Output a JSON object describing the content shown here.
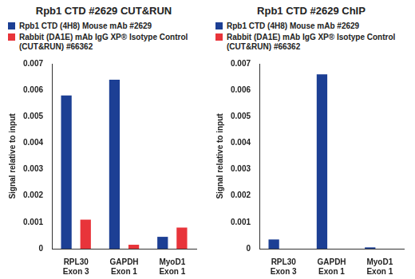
{
  "chart_data": [
    {
      "type": "bar",
      "title": "Rpb1 CTD #2629 CUT&RUN",
      "y_label": "Signal relative to input",
      "categories": [
        [
          "RPL30",
          "Exon 3"
        ],
        [
          "GAPDH",
          "Exon 1"
        ],
        [
          "MyoD1",
          "Exon 1"
        ]
      ],
      "series": [
        {
          "name": "Rpb1 CTD (4H8) Mouse mAb #2629",
          "color": "#1c3f94",
          "values": [
            0.0058,
            0.0064,
            0.00045
          ]
        },
        {
          "name": "Rabbit (DA1E) mAb IgG XP® Isotype Control (CUT&RUN) #66362",
          "color": "#e8343a",
          "values": [
            0.0011,
            0.00015,
            0.0008
          ]
        }
      ],
      "ylim": [
        0,
        0.007
      ],
      "yticks": [
        0,
        0.001,
        0.002,
        0.003,
        0.004,
        0.005,
        0.006,
        0.007
      ],
      "grid": false
    },
    {
      "type": "bar",
      "title": "Rpb1 CTD #2629 ChIP",
      "y_label": "Signal relative to input",
      "categories": [
        [
          "RPL30",
          "Exon 3"
        ],
        [
          "GAPDH",
          "Exon 1"
        ],
        [
          "MyoD1",
          "Exon 1"
        ]
      ],
      "series": [
        {
          "name": "Rpb1 CTD (4H8) Mouse mAb #2629",
          "color": "#1c3f94",
          "values": [
            0.00035,
            0.0066,
            5e-05
          ]
        },
        {
          "name": "Rabbit (DA1E) mAb IgG XP® Isotype Control (CUT&RUN) #66362",
          "color": "#e8343a",
          "values": [
            0,
            0,
            0
          ]
        }
      ],
      "ylim": [
        0,
        0.007
      ],
      "yticks": [
        0,
        0.001,
        0.002,
        0.003,
        0.004,
        0.005,
        0.006,
        0.007
      ],
      "grid": false
    }
  ]
}
